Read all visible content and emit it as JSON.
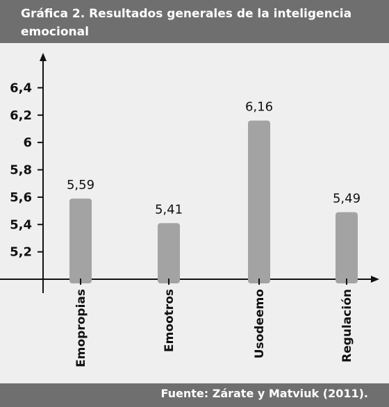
{
  "title": "Gráfica 2. Resultados generales de la inteligencia emocional",
  "source": "Fuente: Zárate y Matviuk (2011).",
  "colors": {
    "bar": "#a3a3a3",
    "banner": "#6f6f6f",
    "axis": "#111111",
    "background": "#efefef"
  },
  "chart_data": {
    "type": "bar",
    "categories": [
      "Emopropias",
      "Emootros",
      "Usodeemo",
      "Regulación"
    ],
    "values": [
      5.59,
      5.41,
      6.16,
      5.49
    ],
    "value_labels": [
      "5,59",
      "5,41",
      "6,16",
      "5,49"
    ],
    "y_ticks": [
      5.2,
      5.4,
      5.6,
      5.8,
      6,
      6.2,
      6.4
    ],
    "y_tick_labels": [
      "5,2",
      "5,4",
      "5,6",
      "5,8",
      "6",
      "6,2",
      "6,4"
    ],
    "ylim": [
      5,
      6.6
    ],
    "grid": false,
    "legend": "none"
  }
}
